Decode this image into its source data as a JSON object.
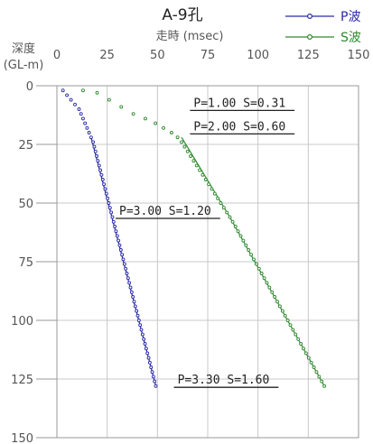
{
  "chart_data": {
    "type": "scatter",
    "title": "A-9孔",
    "xlabel": "走時 (msec)",
    "ylabel_line1": "深度",
    "ylabel_line2": "(GL-m)",
    "xlim": [
      0,
      150
    ],
    "ylim": [
      150,
      0
    ],
    "x_ticks": [
      0,
      25,
      50,
      75,
      100,
      125,
      150
    ],
    "y_ticks": [
      0,
      25,
      50,
      75,
      100,
      125,
      150
    ],
    "grid": true,
    "legend_position": "top-right",
    "series": [
      {
        "name": "P波",
        "color": "#2a2aa8",
        "points": [
          [
            3,
            2
          ],
          [
            5,
            4
          ],
          [
            7,
            6
          ],
          [
            9,
            8
          ],
          [
            11,
            10
          ],
          [
            12,
            12
          ],
          [
            13,
            14
          ],
          [
            14,
            16
          ],
          [
            15,
            18
          ],
          [
            16,
            20
          ],
          [
            17,
            22
          ],
          [
            18,
            24
          ],
          [
            18.6,
            26
          ],
          [
            19.2,
            28
          ],
          [
            19.8,
            30
          ],
          [
            20.4,
            32
          ],
          [
            21,
            34
          ],
          [
            21.6,
            36
          ],
          [
            22.2,
            38
          ],
          [
            22.8,
            40
          ],
          [
            23.4,
            42
          ],
          [
            24,
            44
          ],
          [
            24.6,
            46
          ],
          [
            25.2,
            48
          ],
          [
            25.8,
            50
          ],
          [
            26.4,
            52
          ],
          [
            27,
            54
          ],
          [
            27.6,
            56
          ],
          [
            28.2,
            58
          ],
          [
            28.8,
            60
          ],
          [
            29.4,
            62
          ],
          [
            30,
            64
          ],
          [
            30.6,
            66
          ],
          [
            31.2,
            68
          ],
          [
            31.8,
            70
          ],
          [
            32.4,
            72
          ],
          [
            33,
            74
          ],
          [
            33.6,
            76
          ],
          [
            34.2,
            78
          ],
          [
            34.8,
            80
          ],
          [
            35.4,
            82
          ],
          [
            36,
            84
          ],
          [
            36.6,
            86
          ],
          [
            37.2,
            88
          ],
          [
            37.8,
            90
          ],
          [
            38.4,
            92
          ],
          [
            39,
            94
          ],
          [
            39.6,
            96
          ],
          [
            40.2,
            98
          ],
          [
            40.8,
            100
          ],
          [
            41.4,
            102
          ],
          [
            42,
            104
          ],
          [
            42.6,
            106
          ],
          [
            43.2,
            108
          ],
          [
            43.8,
            110
          ],
          [
            44.4,
            112
          ],
          [
            45,
            114
          ],
          [
            45.6,
            116
          ],
          [
            46.2,
            118
          ],
          [
            46.8,
            120
          ],
          [
            47.4,
            122
          ],
          [
            48,
            124
          ],
          [
            48.6,
            126
          ],
          [
            49.2,
            128
          ]
        ]
      },
      {
        "name": "S波",
        "color": "#2e8a2e",
        "points": [
          [
            13,
            2
          ],
          [
            20,
            3
          ],
          [
            26,
            6
          ],
          [
            32,
            9
          ],
          [
            38,
            12
          ],
          [
            44,
            14
          ],
          [
            49,
            16
          ],
          [
            53,
            18
          ],
          [
            57,
            20
          ],
          [
            60,
            22
          ],
          [
            62,
            24
          ],
          [
            63.5,
            26
          ],
          [
            65,
            28
          ],
          [
            66.5,
            30
          ],
          [
            68,
            32
          ],
          [
            69.5,
            34
          ],
          [
            71,
            36
          ],
          [
            72.5,
            38
          ],
          [
            74,
            40
          ],
          [
            75.5,
            42
          ],
          [
            77,
            44
          ],
          [
            78.5,
            46
          ],
          [
            80,
            48
          ],
          [
            81.5,
            50
          ],
          [
            83,
            52
          ],
          [
            84.5,
            54
          ],
          [
            86,
            56
          ],
          [
            87.4,
            58
          ],
          [
            88.8,
            60
          ],
          [
            90.1,
            62
          ],
          [
            91.4,
            64
          ],
          [
            92.7,
            66
          ],
          [
            94,
            68
          ],
          [
            95.3,
            70
          ],
          [
            96.6,
            72
          ],
          [
            97.9,
            74
          ],
          [
            99.2,
            76
          ],
          [
            100.5,
            78
          ],
          [
            101.8,
            80
          ],
          [
            103.1,
            82
          ],
          [
            104.4,
            84
          ],
          [
            105.7,
            86
          ],
          [
            107,
            88
          ],
          [
            108.3,
            90
          ],
          [
            109.6,
            92
          ],
          [
            110.9,
            94
          ],
          [
            112.2,
            96
          ],
          [
            113.5,
            98
          ],
          [
            114.8,
            100
          ],
          [
            116.1,
            102
          ],
          [
            117.4,
            104
          ],
          [
            118.7,
            106
          ],
          [
            120,
            108
          ],
          [
            121.3,
            110
          ],
          [
            122.6,
            112
          ],
          [
            123.9,
            114
          ],
          [
            125.2,
            116
          ],
          [
            126.5,
            118
          ],
          [
            127.8,
            120
          ],
          [
            129.1,
            122
          ],
          [
            130.4,
            124
          ],
          [
            131.7,
            126
          ],
          [
            133,
            128
          ]
        ]
      }
    ],
    "fit_lines": [
      {
        "series": "P",
        "color": "#2a2aa8",
        "points": [
          [
            17,
            22
          ],
          [
            49.2,
            128
          ]
        ]
      },
      {
        "series": "S",
        "color": "#2e8a2e",
        "points": [
          [
            62,
            22
          ],
          [
            86,
            56
          ],
          [
            133,
            128
          ]
        ]
      }
    ],
    "annotations": [
      {
        "text": "P=1.00 S=0.31",
        "x": 68,
        "y": 9
      },
      {
        "text": "P=2.00 S=0.60",
        "x": 68,
        "y": 19
      },
      {
        "text": "P=3.00 S=1.20",
        "x": 31,
        "y": 55
      },
      {
        "text": "P=3.30 S=1.60",
        "x": 60,
        "y": 127
      }
    ]
  }
}
